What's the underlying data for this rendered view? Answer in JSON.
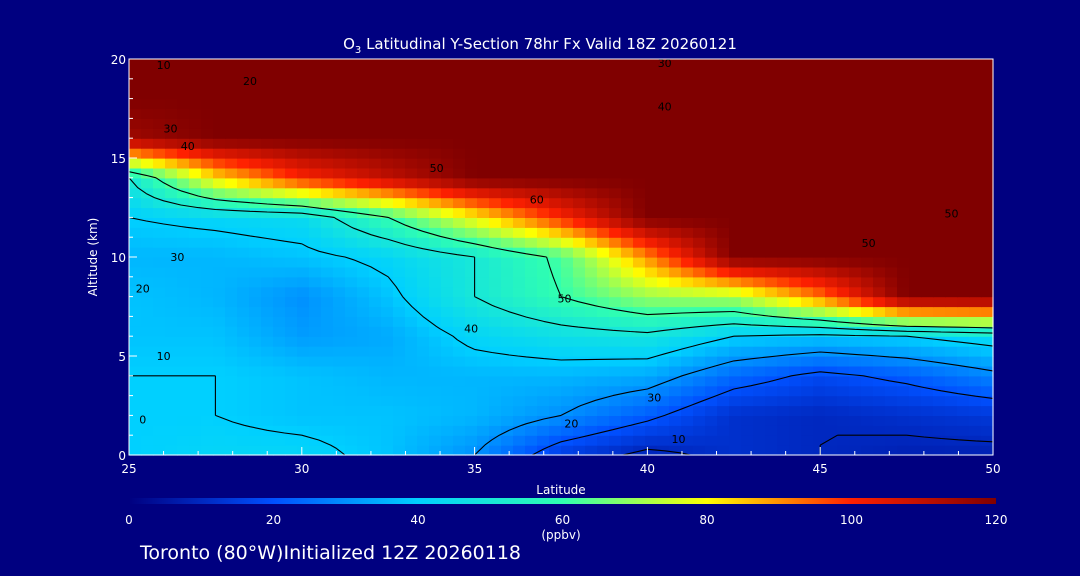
{
  "chart_data": {
    "type": "heatmap",
    "title": {
      "species_main": "O",
      "species_sub": "3",
      "rest": " Latitudinal Y-Section 78hr  Fx Valid 18Z 20260121"
    },
    "xlabel": "Latitude",
    "ylabel": "Altitude (km)",
    "xlim": [
      25,
      50
    ],
    "ylim": [
      0,
      20
    ],
    "xticks": [
      "25",
      "30",
      "35",
      "40",
      "45",
      "50"
    ],
    "yticks": [
      "0",
      "5",
      "10",
      "15",
      "20"
    ],
    "x": [
      25,
      27.5,
      30,
      32.5,
      35,
      37.5,
      40,
      42.5,
      45,
      47.5,
      50
    ],
    "y": [
      0,
      2,
      4,
      6,
      8,
      10,
      12,
      14,
      16,
      18,
      20
    ],
    "z": [
      [
        40,
        42,
        42,
        38,
        30,
        15,
        8,
        12,
        10,
        8,
        8
      ],
      [
        40,
        40,
        38,
        38,
        36,
        30,
        22,
        12,
        10,
        12,
        14
      ],
      [
        40,
        40,
        38,
        36,
        36,
        36,
        34,
        24,
        18,
        22,
        28
      ],
      [
        38,
        38,
        32,
        34,
        42,
        46,
        48,
        40,
        38,
        40,
        44
      ],
      [
        38,
        36,
        30,
        38,
        50,
        60,
        70,
        72,
        92,
        120,
        120
      ],
      [
        36,
        36,
        38,
        42,
        50,
        62,
        90,
        120,
        120,
        120,
        120
      ],
      [
        40,
        42,
        44,
        60,
        80,
        100,
        120,
        120,
        120,
        120,
        120
      ],
      [
        50,
        82,
        100,
        110,
        120,
        120,
        120,
        120,
        120,
        120,
        120
      ],
      [
        115,
        120,
        120,
        120,
        120,
        120,
        120,
        120,
        120,
        120,
        120
      ],
      [
        120,
        120,
        120,
        120,
        120,
        120,
        120,
        120,
        120,
        120,
        120
      ],
      [
        120,
        120,
        120,
        120,
        120,
        120,
        120,
        120,
        120,
        120,
        120
      ]
    ],
    "colorbar": {
      "ticks": [
        "0",
        "20",
        "40",
        "60",
        "80",
        "100",
        "120"
      ],
      "min": 0,
      "max": 120,
      "unit": "(ppbv)",
      "colors": [
        "#000080",
        "#0050ff",
        "#00d0ff",
        "#30ffb0",
        "#ffff00",
        "#ff2000",
        "#800000"
      ]
    },
    "contour_labels": [
      {
        "text": "0",
        "x": 25.4,
        "y": 1.8
      },
      {
        "text": "10",
        "x": 26.0,
        "y": 5.0
      },
      {
        "text": "20",
        "x": 25.4,
        "y": 8.4
      },
      {
        "text": "30",
        "x": 26.4,
        "y": 10.0
      },
      {
        "text": "40",
        "x": 26.7,
        "y": 15.6
      },
      {
        "text": "30",
        "x": 26.2,
        "y": 16.5
      },
      {
        "text": "20",
        "x": 28.5,
        "y": 18.9
      },
      {
        "text": "10",
        "x": 26.0,
        "y": 19.7
      },
      {
        "text": "50",
        "x": 33.9,
        "y": 14.5
      },
      {
        "text": "60",
        "x": 36.8,
        "y": 12.9
      },
      {
        "text": "50",
        "x": 37.6,
        "y": 7.9
      },
      {
        "text": "40",
        "x": 34.9,
        "y": 6.4
      },
      {
        "text": "30",
        "x": 40.2,
        "y": 2.9
      },
      {
        "text": "20",
        "x": 37.8,
        "y": 1.6
      },
      {
        "text": "10",
        "x": 40.9,
        "y": 0.8
      },
      {
        "text": "30",
        "x": 40.5,
        "y": 19.8
      },
      {
        "text": "40",
        "x": 40.5,
        "y": 17.6
      },
      {
        "text": "50",
        "x": 46.4,
        "y": 10.7
      },
      {
        "text": "50",
        "x": 48.8,
        "y": 12.2
      }
    ],
    "footer": "Toronto (80°W)Initialized 12Z 20260118"
  }
}
